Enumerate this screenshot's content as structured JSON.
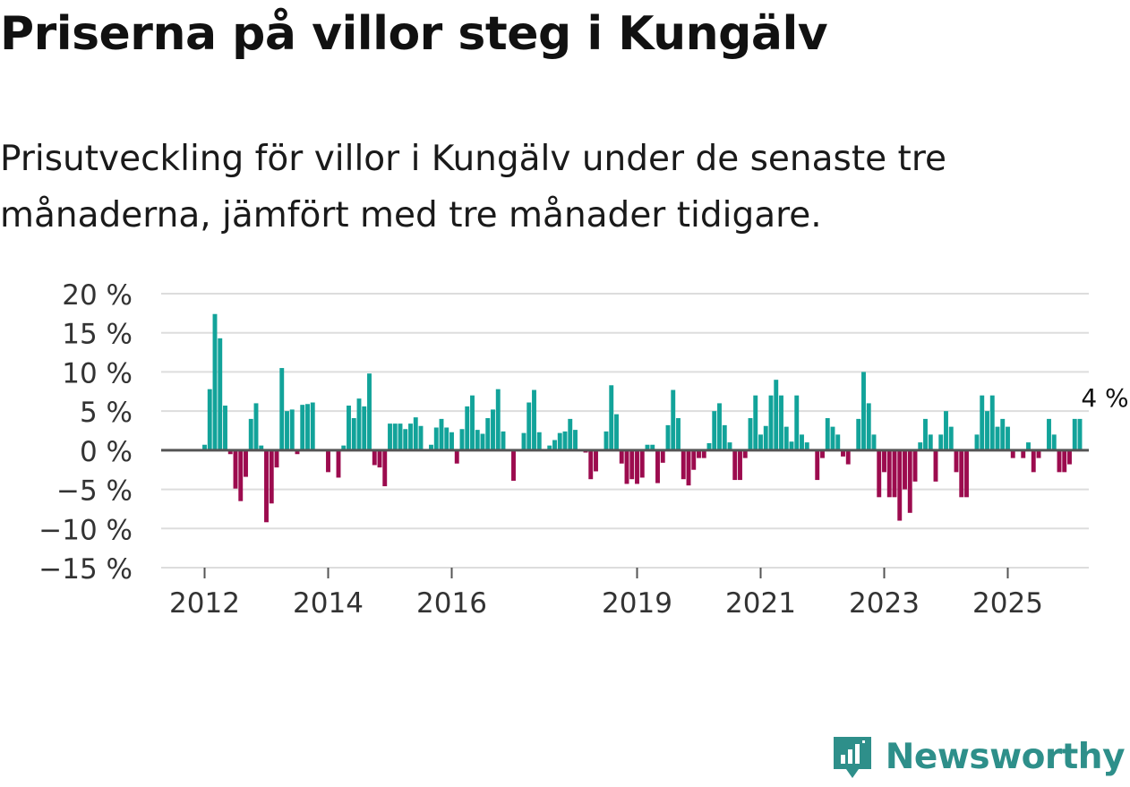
{
  "title": "Priserna på villor steg i Kungälv",
  "subtitle": "Prisutveckling för villor i Kungälv under de senaste tre månaderna, jämfört med tre månader tidigare.",
  "brand": {
    "name": "Newsworthy"
  },
  "colors": {
    "positive": "#12a39a",
    "negative": "#9c0b4e",
    "grid": "#dddddd",
    "zero": "#555555",
    "brand": "#2e8f8a"
  },
  "chart_data": {
    "type": "bar",
    "title": "Prisutveckling för villor i Kungälv",
    "xlabel": "",
    "ylabel": "",
    "ylim": [
      -15,
      20
    ],
    "y_ticks": [
      20,
      15,
      10,
      5,
      0,
      -5,
      -10,
      -15
    ],
    "y_tick_labels": [
      "20 %",
      "15 %",
      "10 %",
      "5 %",
      "0 %",
      "−5 %",
      "−10 %",
      "−15 %"
    ],
    "x_ticks": [
      {
        "label": "2012",
        "year": 2012
      },
      {
        "label": "2014",
        "year": 2014
      },
      {
        "label": "2016",
        "year": 2016
      },
      {
        "label": "2019",
        "year": 2019
      },
      {
        "label": "2021",
        "year": 2021
      },
      {
        "label": "2023",
        "year": 2023
      },
      {
        "label": "2025",
        "year": 2025
      }
    ],
    "start": {
      "year": 2012,
      "month": 1
    },
    "unit": "%",
    "values": [
      0.7,
      7.8,
      17.4,
      14.3,
      5.7,
      -0.5,
      -4.9,
      -6.5,
      -3.4,
      4.0,
      6.0,
      0.6,
      -9.2,
      -6.8,
      -2.2,
      10.5,
      5.0,
      5.2,
      -0.5,
      5.8,
      5.9,
      6.1,
      0,
      0,
      -2.8,
      0,
      -3.5,
      0.6,
      5.7,
      4.1,
      6.6,
      5.6,
      9.8,
      -1.9,
      -2.2,
      -4.6,
      3.4,
      3.4,
      3.4,
      2.7,
      3.4,
      4.2,
      3.1,
      0,
      0.7,
      2.9,
      4.0,
      2.9,
      2.3,
      -1.7,
      2.7,
      5.6,
      7.0,
      2.6,
      2.1,
      4.1,
      5.2,
      7.8,
      2.4,
      0,
      -3.9,
      0,
      2.2,
      6.1,
      7.7,
      2.3,
      0,
      0.6,
      1.3,
      2.2,
      2.4,
      4.0,
      2.6,
      0,
      -0.3,
      -3.7,
      -2.7,
      0,
      2.4,
      8.3,
      4.6,
      -1.7,
      -4.3,
      -3.7,
      -4.3,
      -3.5,
      0.7,
      0.7,
      -4.2,
      -1.6,
      3.2,
      7.7,
      4.1,
      -3.7,
      -4.5,
      -2.5,
      -1.0,
      -1.0,
      0.9,
      5.0,
      6.0,
      3.2,
      1.0,
      -3.8,
      -3.8,
      -1.0,
      4.1,
      7.0,
      2.0,
      3.1,
      7.0,
      9.0,
      7.0,
      3.0,
      1.1,
      7.0,
      2.0,
      1.0,
      0,
      -3.8,
      -1.0,
      4.1,
      3.0,
      2.0,
      -0.8,
      -1.8,
      0,
      4.0,
      10.0,
      6.0,
      2.0,
      -6.0,
      -2.8,
      -6.0,
      -6.0,
      -9.0,
      -5.0,
      -8.0,
      -4.0,
      1.0,
      4.0,
      2.0,
      -4.0,
      2.0,
      5.0,
      3.0,
      -2.8,
      -6.0,
      -6.0,
      0,
      2.0,
      7.0,
      5.0,
      7.0,
      3.0,
      4.0,
      3.0,
      -1.0,
      0,
      -1.0,
      1.0,
      -2.8,
      -1.0,
      0,
      4.0,
      2.0,
      -2.8,
      -2.8,
      -1.8,
      4.0,
      4.0
    ],
    "annotation": {
      "label": "4 %",
      "value": 4,
      "index": "last"
    },
    "grid": true,
    "legend": "none"
  }
}
